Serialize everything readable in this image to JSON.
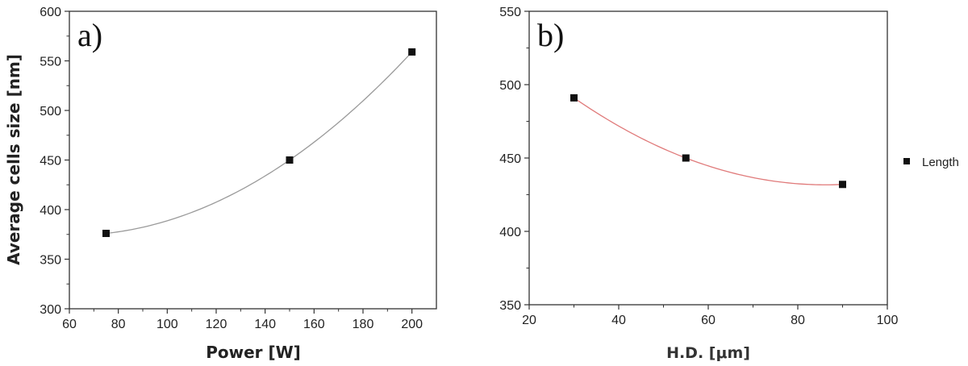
{
  "chart_data": [
    {
      "type": "scatter",
      "panel_label": "a)",
      "xlabel": "Power [W]",
      "ylabel": "Average cells size [nm]",
      "xlim": [
        60,
        210
      ],
      "ylim": [
        300,
        600
      ],
      "x_ticks": [
        60,
        80,
        100,
        120,
        140,
        160,
        180,
        200
      ],
      "y_ticks": [
        300,
        350,
        400,
        450,
        500,
        550,
        600
      ],
      "grid": false,
      "fit_color": "#9a9a9a",
      "marker_color": "#111111",
      "series": [
        {
          "x": [
            75,
            150,
            200
          ],
          "y": [
            376,
            450,
            559
          ]
        }
      ]
    },
    {
      "type": "scatter",
      "panel_label": "b)",
      "xlabel": "H.D. [μm]",
      "ylabel": "",
      "xlim": [
        20,
        100
      ],
      "ylim": [
        350,
        550
      ],
      "x_ticks": [
        20,
        40,
        60,
        80,
        100
      ],
      "y_ticks": [
        350,
        400,
        450,
        500,
        550
      ],
      "grid": false,
      "legend_position": "right",
      "fit_color": "#e07a7a",
      "marker_color": "#111111",
      "series": [
        {
          "name": "Length",
          "x": [
            30,
            55,
            90
          ],
          "y": [
            491,
            450,
            432
          ]
        }
      ]
    }
  ]
}
